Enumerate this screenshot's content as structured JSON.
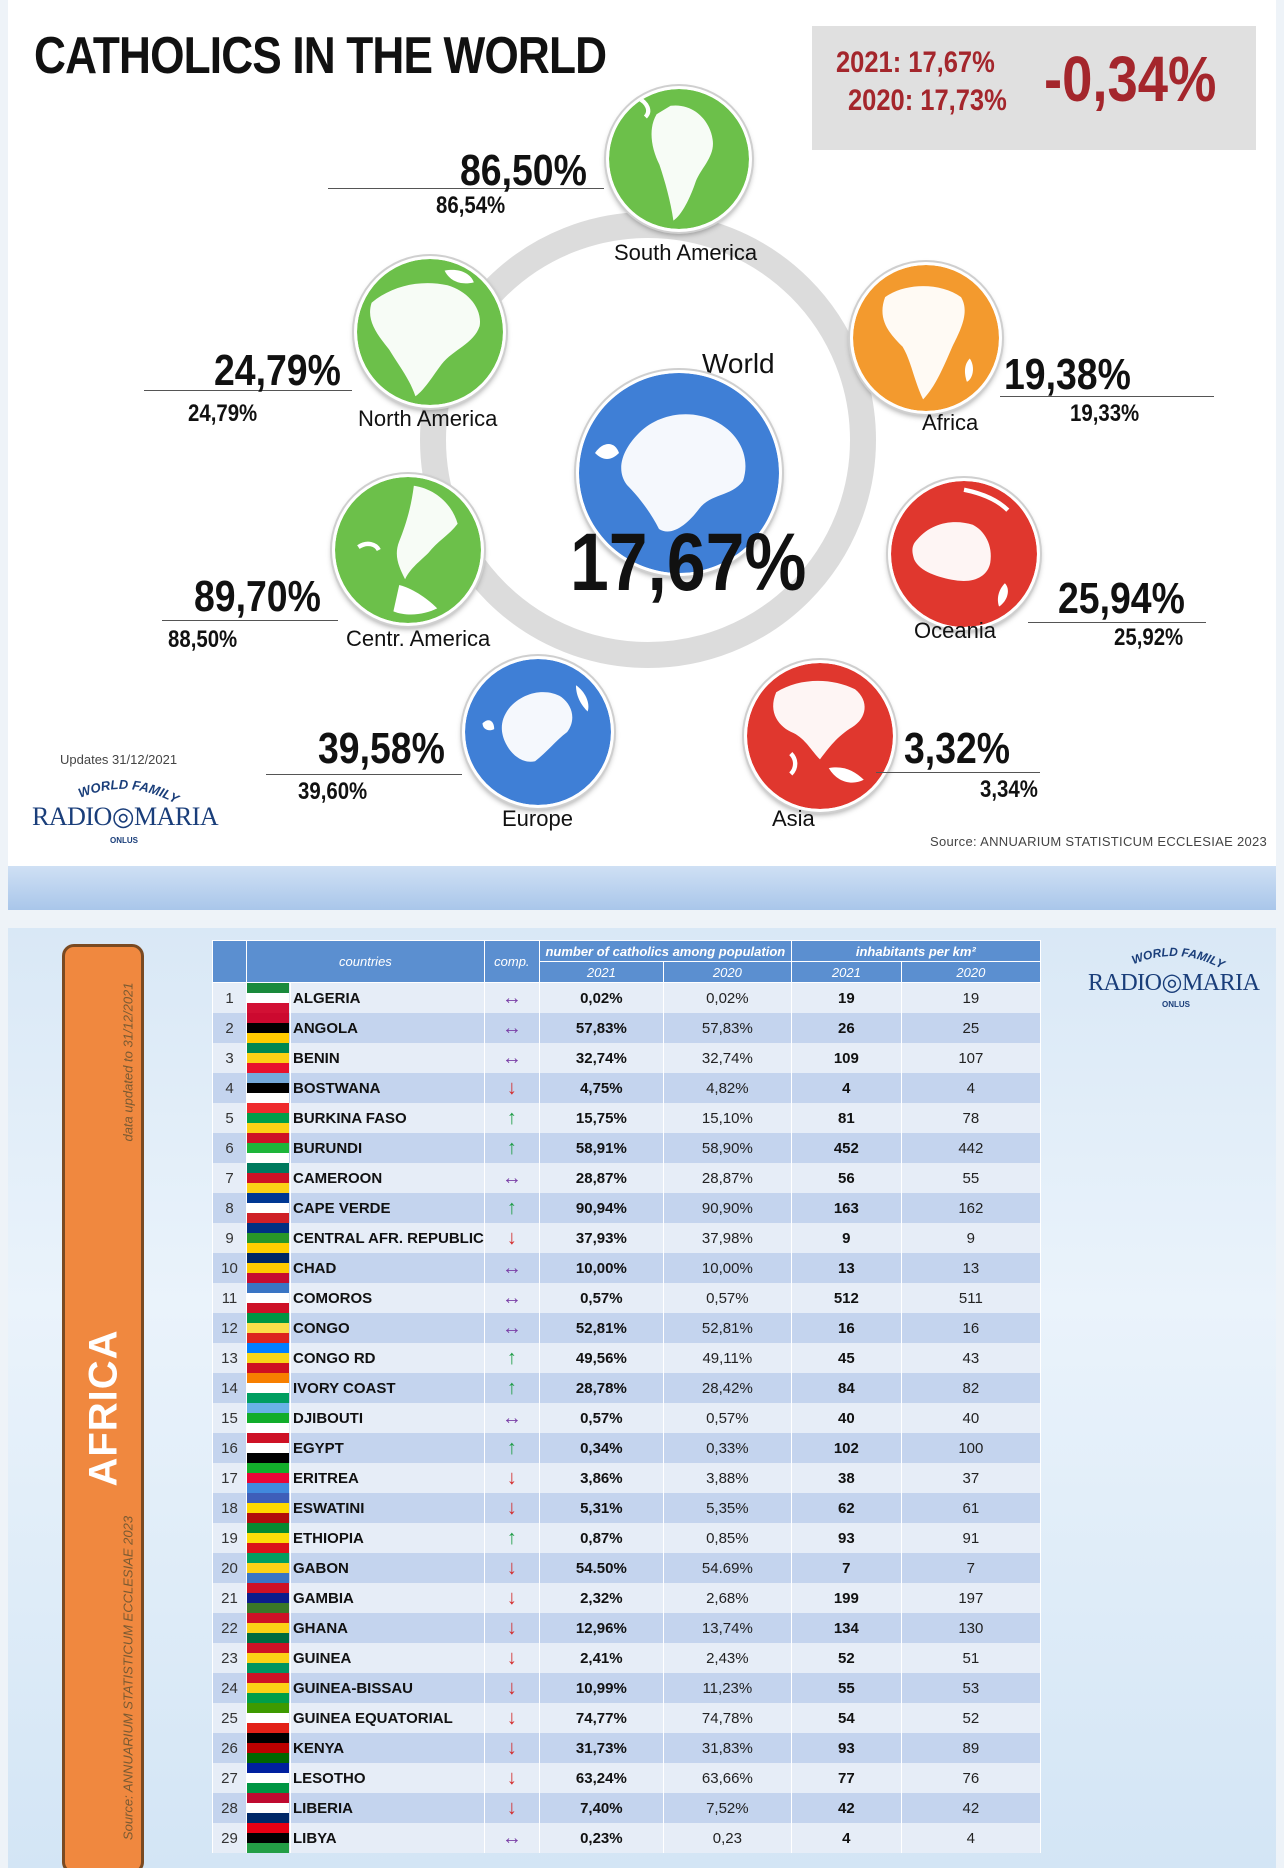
{
  "top": {
    "title": "CATHOLICS IN THE WORLD",
    "summary": {
      "line_2021": "2021: 17,67%",
      "line_2020": "2020: 17,73%",
      "change": "-0,34%"
    },
    "world": {
      "label": "World",
      "pct": "17,67%"
    },
    "regions": {
      "south_america": {
        "label": "South America",
        "pct_2021": "86,50%",
        "pct_2020": "86,54%"
      },
      "north_america": {
        "label": "North America",
        "pct_2021": "24,79%",
        "pct_2020": "24,79%"
      },
      "africa": {
        "label": "Africa",
        "pct_2021": "19,38%",
        "pct_2020": "19,33%"
      },
      "centr_america": {
        "label": "Centr. America",
        "pct_2021": "89,70%",
        "pct_2020": "88,50%"
      },
      "oceania": {
        "label": "Oceania",
        "pct_2021": "25,94%",
        "pct_2020": "25,92%"
      },
      "europe": {
        "label": "Europe",
        "pct_2021": "39,58%",
        "pct_2020": "39,60%"
      },
      "asia": {
        "label": "Asia",
        "pct_2021": "3,32%",
        "pct_2020": "3,34%"
      }
    },
    "updates": "Updates 31/12/2021",
    "source": "Source: ANNUARIUM STATISTICUM ECCLESIAE 2023",
    "logo": {
      "arc_text": "WORLD FAMILY",
      "word_left": "RADIO",
      "word_right": "MARIA",
      "onlus": "ONLUS"
    },
    "colors": {
      "green": "#6cc04a",
      "orange": "#f39a2e",
      "red": "#e0372e",
      "blue": "#3f7fd6",
      "accent_red": "#a4262c"
    }
  },
  "bottom": {
    "region": "AFRICA",
    "data_updated": "data updated to 31/12/2021",
    "source": "Source: ANNUARIUM STATISTICUM ECCLESIAE 2023",
    "headers": {
      "countries": "countries",
      "comp": "comp.",
      "catholics": "number of catholics among population",
      "inhabitants": "inhabitants per km²",
      "y2021": "2021",
      "y2020": "2020"
    },
    "legend_icons": {
      "up": "arrow-up-icon",
      "down": "arrow-down-icon",
      "same": "arrow-left-right-icon"
    },
    "rows": [
      {
        "n": "1",
        "country": "ALGERIA",
        "comp": "same",
        "c2021": "0,02%",
        "c2020": "0,02%",
        "i2021": "19",
        "i2020": "19"
      },
      {
        "n": "2",
        "country": "ANGOLA",
        "comp": "same",
        "c2021": "57,83%",
        "c2020": "57,83%",
        "i2021": "26",
        "i2020": "25"
      },
      {
        "n": "3",
        "country": "BENIN",
        "comp": "same",
        "c2021": "32,74%",
        "c2020": "32,74%",
        "i2021": "109",
        "i2020": "107"
      },
      {
        "n": "4",
        "country": "BOSTWANA",
        "comp": "down",
        "c2021": "4,75%",
        "c2020": "4,82%",
        "i2021": "4",
        "i2020": "4"
      },
      {
        "n": "5",
        "country": "BURKINA FASO",
        "comp": "up",
        "c2021": "15,75%",
        "c2020": "15,10%",
        "i2021": "81",
        "i2020": "78"
      },
      {
        "n": "6",
        "country": "BURUNDI",
        "comp": "up",
        "c2021": "58,91%",
        "c2020": "58,90%",
        "i2021": "452",
        "i2020": "442"
      },
      {
        "n": "7",
        "country": "CAMEROON",
        "comp": "same",
        "c2021": "28,87%",
        "c2020": "28,87%",
        "i2021": "56",
        "i2020": "55"
      },
      {
        "n": "8",
        "country": "CAPE VERDE",
        "comp": "up",
        "c2021": "90,94%",
        "c2020": "90,90%",
        "i2021": "163",
        "i2020": "162"
      },
      {
        "n": "9",
        "country": "CENTRAL AFR. REPUBLIC",
        "comp": "down",
        "c2021": "37,93%",
        "c2020": "37,98%",
        "i2021": "9",
        "i2020": "9"
      },
      {
        "n": "10",
        "country": "CHAD",
        "comp": "same",
        "c2021": "10,00%",
        "c2020": "10,00%",
        "i2021": "13",
        "i2020": "13"
      },
      {
        "n": "11",
        "country": "COMOROS",
        "comp": "same",
        "c2021": "0,57%",
        "c2020": "0,57%",
        "i2021": "512",
        "i2020": "511"
      },
      {
        "n": "12",
        "country": "CONGO",
        "comp": "same",
        "c2021": "52,81%",
        "c2020": "52,81%",
        "i2021": "16",
        "i2020": "16"
      },
      {
        "n": "13",
        "country": "CONGO RD",
        "comp": "up",
        "c2021": "49,56%",
        "c2020": "49,11%",
        "i2021": "45",
        "i2020": "43"
      },
      {
        "n": "14",
        "country": "IVORY COAST",
        "comp": "up",
        "c2021": "28,78%",
        "c2020": "28,42%",
        "i2021": "84",
        "i2020": "82"
      },
      {
        "n": "15",
        "country": "DJIBOUTI",
        "comp": "same",
        "c2021": "0,57%",
        "c2020": "0,57%",
        "i2021": "40",
        "i2020": "40"
      },
      {
        "n": "16",
        "country": "EGYPT",
        "comp": "up",
        "c2021": "0,34%",
        "c2020": "0,33%",
        "i2021": "102",
        "i2020": "100"
      },
      {
        "n": "17",
        "country": "ERITREA",
        "comp": "down",
        "c2021": "3,86%",
        "c2020": "3,88%",
        "i2021": "38",
        "i2020": "37"
      },
      {
        "n": "18",
        "country": "ESWATINI",
        "comp": "down",
        "c2021": "5,31%",
        "c2020": "5,35%",
        "i2021": "62",
        "i2020": "61"
      },
      {
        "n": "19",
        "country": "ETHIOPIA",
        "comp": "up",
        "c2021": "0,87%",
        "c2020": "0,85%",
        "i2021": "93",
        "i2020": "91"
      },
      {
        "n": "20",
        "country": "GABON",
        "comp": "down",
        "c2021": "54.50%",
        "c2020": "54.69%",
        "i2021": "7",
        "i2020": "7"
      },
      {
        "n": "21",
        "country": "GAMBIA",
        "comp": "down",
        "c2021": "2,32%",
        "c2020": "2,68%",
        "i2021": "199",
        "i2020": "197"
      },
      {
        "n": "22",
        "country": "GHANA",
        "comp": "down",
        "c2021": "12,96%",
        "c2020": "13,74%",
        "i2021": "134",
        "i2020": "130"
      },
      {
        "n": "23",
        "country": "GUINEA",
        "comp": "down",
        "c2021": "2,41%",
        "c2020": "2,43%",
        "i2021": "52",
        "i2020": "51"
      },
      {
        "n": "24",
        "country": "GUINEA-BISSAU",
        "comp": "down",
        "c2021": "10,99%",
        "c2020": "11,23%",
        "i2021": "55",
        "i2020": "53"
      },
      {
        "n": "25",
        "country": "GUINEA EQUATORIAL",
        "comp": "down",
        "c2021": "74,77%",
        "c2020": "74,78%",
        "i2021": "54",
        "i2020": "52"
      },
      {
        "n": "26",
        "country": "KENYA",
        "comp": "down",
        "c2021": "31,73%",
        "c2020": "31,83%",
        "i2021": "93",
        "i2020": "89"
      },
      {
        "n": "27",
        "country": "LESOTHO",
        "comp": "down",
        "c2021": "63,24%",
        "c2020": "63,66%",
        "i2021": "77",
        "i2020": "76"
      },
      {
        "n": "28",
        "country": "LIBERIA",
        "comp": "down",
        "c2021": "7,40%",
        "c2020": "7,52%",
        "i2021": "42",
        "i2020": "42"
      },
      {
        "n": "29",
        "country": "LIBYA",
        "comp": "same",
        "c2021": "0,23%",
        "c2020": "0,23",
        "i2021": "4",
        "i2020": "4"
      }
    ]
  }
}
